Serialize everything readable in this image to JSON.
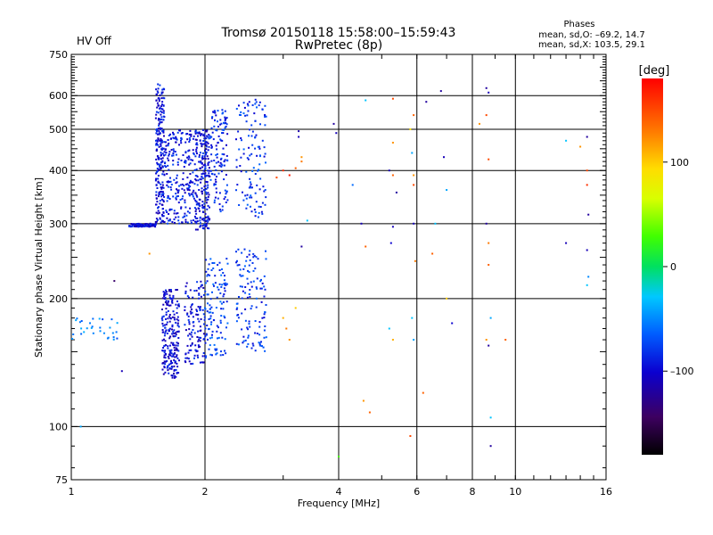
{
  "header": {
    "title_line1": "Tromsø 20150118 15:58:00–15:59:43",
    "title_line2": "RwPretec (8p)",
    "status": "HV Off",
    "status_color": "#cc0000",
    "phases_title": "Phases",
    "phases_o": "mean, sd,O: –69.2, 14.7",
    "phases_x": "mean, sd,X: 103.5, 29.1"
  },
  "colorbar": {
    "label": "[deg]",
    "min": -180,
    "max": 180,
    "ticks": [
      100,
      0,
      -100
    ],
    "tick_labels": [
      "100",
      "0",
      "–100"
    ]
  },
  "chart_data": {
    "type": "scatter",
    "title": "",
    "xlabel": "Frequency [MHz]",
    "ylabel": "Stationary phase Virtual Height [km]",
    "xscale": "log",
    "yscale": "log",
    "xlim": [
      1,
      16
    ],
    "ylim": [
      75,
      750
    ],
    "xticks": [
      1,
      2,
      4,
      6,
      8,
      10,
      16
    ],
    "xtick_labels": [
      "1",
      "2",
      "4",
      "6",
      "8",
      "10",
      "16"
    ],
    "yticks": [
      75,
      100,
      200,
      300,
      400,
      500,
      600,
      750
    ],
    "ytick_labels": [
      "75",
      "100",
      "200",
      "300",
      "400",
      "500",
      "600",
      "750"
    ],
    "grid": true,
    "color_encodes": "phase [deg]",
    "traces": [
      {
        "x_start": 1.35,
        "x_end": 1.55,
        "y_start": 295,
        "y_end": 300,
        "phase": -100,
        "density": "medium"
      },
      {
        "x_start": 1.55,
        "x_end": 1.62,
        "y_start": 300,
        "y_end": 640,
        "phase": -95,
        "density": "high"
      },
      {
        "x_start": 1.62,
        "x_end": 1.9,
        "y_start": 300,
        "y_end": 500,
        "phase": -90,
        "density": "high"
      },
      {
        "x_start": 1.9,
        "x_end": 2.05,
        "y_start": 290,
        "y_end": 500,
        "phase": -95,
        "density": "high"
      },
      {
        "x_start": 2.05,
        "x_end": 2.25,
        "y_start": 320,
        "y_end": 560,
        "phase": -85,
        "density": "medium"
      },
      {
        "x_start": 2.35,
        "x_end": 2.75,
        "y_start": 310,
        "y_end": 590,
        "phase": -80,
        "density": "medium"
      },
      {
        "x_start": 1.6,
        "x_end": 1.75,
        "y_start": 130,
        "y_end": 210,
        "phase": -100,
        "density": "high"
      },
      {
        "x_start": 1.8,
        "x_end": 2.0,
        "y_start": 140,
        "y_end": 220,
        "phase": -95,
        "density": "medium"
      },
      {
        "x_start": 2.0,
        "x_end": 2.25,
        "y_start": 145,
        "y_end": 250,
        "phase": -75,
        "density": "medium"
      },
      {
        "x_start": 2.35,
        "x_end": 2.75,
        "y_start": 150,
        "y_end": 265,
        "phase": -80,
        "density": "medium"
      },
      {
        "x_start": 1.0,
        "x_end": 1.3,
        "y_start": 160,
        "y_end": 180,
        "phase": -55,
        "density": "low"
      }
    ],
    "points": [
      [
        1.05,
        100,
        -40
      ],
      [
        1.25,
        220,
        -140
      ],
      [
        1.5,
        255,
        120
      ],
      [
        1.3,
        135,
        -110
      ],
      [
        2.9,
        385,
        150
      ],
      [
        3.0,
        400,
        160
      ],
      [
        3.1,
        390,
        170
      ],
      [
        3.2,
        405,
        140
      ],
      [
        3.3,
        420,
        130
      ],
      [
        3.25,
        480,
        -110
      ],
      [
        3.25,
        495,
        -115
      ],
      [
        3.3,
        430,
        120
      ],
      [
        3.0,
        180,
        110
      ],
      [
        3.05,
        170,
        130
      ],
      [
        3.1,
        160,
        120
      ],
      [
        3.2,
        190,
        100
      ],
      [
        3.3,
        265,
        -120
      ],
      [
        3.4,
        305,
        -30
      ],
      [
        3.9,
        515,
        -120
      ],
      [
        3.95,
        490,
        -110
      ],
      [
        4.3,
        370,
        -60
      ],
      [
        4.5,
        300,
        -110
      ],
      [
        4.6,
        265,
        140
      ],
      [
        4.6,
        585,
        -30
      ],
      [
        4.55,
        115,
        120
      ],
      [
        4.7,
        108,
        140
      ],
      [
        4.0,
        85,
        30
      ],
      [
        5.3,
        590,
        150
      ],
      [
        5.3,
        465,
        120
      ],
      [
        5.2,
        400,
        -110
      ],
      [
        5.3,
        390,
        140
      ],
      [
        5.4,
        355,
        -120
      ],
      [
        5.3,
        295,
        -110
      ],
      [
        5.25,
        270,
        -100
      ],
      [
        5.2,
        170,
        -30
      ],
      [
        5.3,
        160,
        110
      ],
      [
        5.8,
        500,
        90
      ],
      [
        5.9,
        540,
        140
      ],
      [
        5.85,
        440,
        -40
      ],
      [
        5.9,
        390,
        120
      ],
      [
        5.9,
        370,
        150
      ],
      [
        5.9,
        300,
        -110
      ],
      [
        5.95,
        245,
        130
      ],
      [
        5.85,
        180,
        -30
      ],
      [
        5.9,
        160,
        -40
      ],
      [
        5.8,
        95,
        150
      ],
      [
        6.2,
        120,
        140
      ],
      [
        6.3,
        580,
        -120
      ],
      [
        6.6,
        300,
        -30
      ],
      [
        6.5,
        255,
        140
      ],
      [
        6.8,
        615,
        -120
      ],
      [
        6.9,
        430,
        -110
      ],
      [
        7.0,
        360,
        -40
      ],
      [
        7.0,
        200,
        100
      ],
      [
        7.2,
        175,
        -100
      ],
      [
        8.3,
        515,
        120
      ],
      [
        8.6,
        625,
        -120
      ],
      [
        8.7,
        610,
        -110
      ],
      [
        8.6,
        540,
        150
      ],
      [
        8.7,
        425,
        150
      ],
      [
        8.6,
        300,
        -120
      ],
      [
        8.7,
        270,
        130
      ],
      [
        8.7,
        240,
        140
      ],
      [
        8.8,
        180,
        -40
      ],
      [
        8.6,
        160,
        120
      ],
      [
        8.7,
        155,
        -120
      ],
      [
        8.8,
        105,
        -30
      ],
      [
        8.8,
        90,
        -120
      ],
      [
        9.5,
        160,
        140
      ],
      [
        13.0,
        470,
        -30
      ],
      [
        13.0,
        270,
        -110
      ],
      [
        14.5,
        480,
        -120
      ],
      [
        14.5,
        400,
        150
      ],
      [
        14.5,
        370,
        160
      ],
      [
        14.6,
        315,
        -120
      ],
      [
        14.5,
        260,
        -110
      ],
      [
        14.6,
        225,
        -50
      ],
      [
        14.5,
        215,
        -30
      ],
      [
        14.0,
        455,
        120
      ]
    ]
  }
}
